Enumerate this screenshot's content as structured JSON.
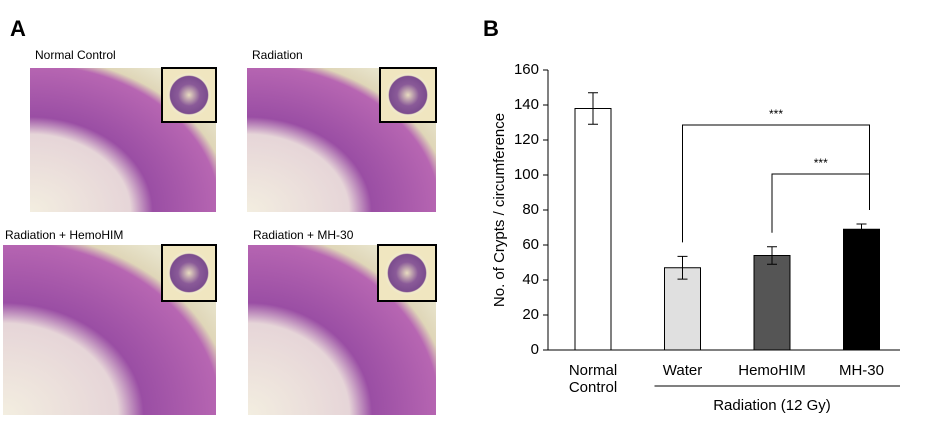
{
  "panel_a": {
    "label": "A",
    "images": [
      {
        "caption": "Normal Control"
      },
      {
        "caption": "Radiation"
      },
      {
        "caption": "Radiation + HemoHIM"
      },
      {
        "caption": "Radiation + MH-30"
      }
    ]
  },
  "panel_b": {
    "label": "B"
  },
  "chart_data": {
    "type": "bar",
    "y_label": "No. of Crypts / circumference",
    "categories": [
      "Normal Control",
      "Water",
      "HemoHIM",
      "MH-30"
    ],
    "values": [
      138,
      47,
      54,
      69
    ],
    "errors": [
      9,
      6.5,
      5,
      3
    ],
    "colors": [
      "#ffffff",
      "#e0e0e0",
      "#555555",
      "#000000"
    ],
    "ylim": [
      0,
      160
    ],
    "yticks": [
      0,
      20,
      40,
      60,
      80,
      100,
      120,
      140,
      160
    ],
    "group": {
      "label": "Radiation (12 Gy)",
      "from": 1,
      "to": 3
    },
    "significance": [
      {
        "from": 1,
        "to": 3,
        "label": "***"
      },
      {
        "from": 2,
        "to": 3,
        "label": "***"
      }
    ]
  }
}
